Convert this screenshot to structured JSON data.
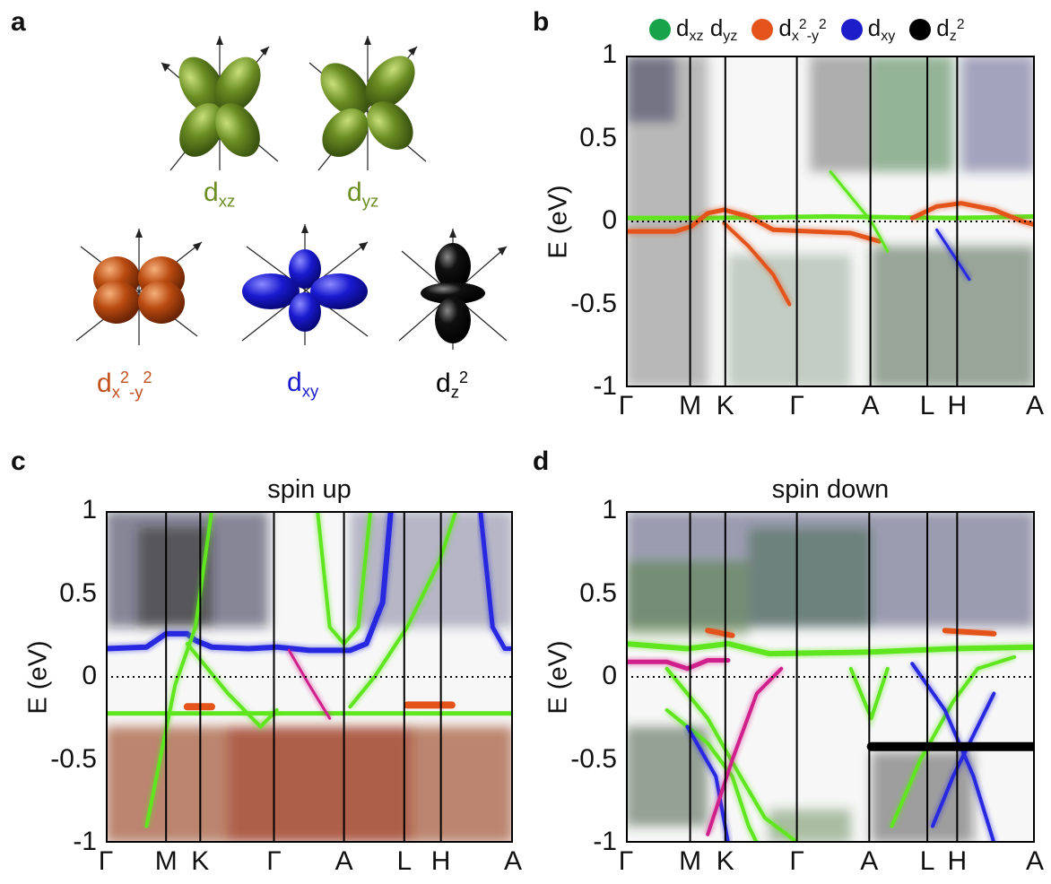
{
  "panel_letters": {
    "a": "a",
    "b": "b",
    "c": "c",
    "d": "d"
  },
  "orbitals": {
    "dxz": {
      "base": "d",
      "sub": "xz",
      "color": "#6b8e23"
    },
    "dyz": {
      "base": "d",
      "sub": "yz",
      "color": "#6b8e23"
    },
    "dx2y2": {
      "base": "d",
      "sub1": "x",
      "sup1": "2",
      "mid": "-y",
      "sup2": "2",
      "color": "#b94a10"
    },
    "dxy": {
      "base": "d",
      "sub": "xy",
      "color": "#1a1ad0"
    },
    "dz2": {
      "base": "d",
      "sub": "z",
      "sup": "2",
      "color": "#000000"
    }
  },
  "legend": [
    {
      "color": "#16a34a",
      "base": "d",
      "sub": "xz",
      "base2": "d",
      "sub2": "yz"
    },
    {
      "color": "#e3531a",
      "base": "d",
      "sub": "x",
      "sup": "2",
      "mid": "-y",
      "sup2": "2"
    },
    {
      "color": "#1d1dc9",
      "base": "d",
      "sub": "xy"
    },
    {
      "color": "#000000",
      "base": "d",
      "sub": "z",
      "sup": "2"
    }
  ],
  "plots": {
    "b": {
      "title": "",
      "ylabel": "E (eV)",
      "yticks": [
        "1",
        "0.5",
        "0",
        "-0.5",
        "-1"
      ],
      "xticks": [
        "Γ",
        "M",
        "K",
        "Γ",
        "A",
        "L",
        "H",
        "A"
      ]
    },
    "c": {
      "title": "spin up",
      "ylabel": "E (eV)",
      "yticks": [
        "1",
        "0.5",
        "0",
        "-0.5",
        "-1"
      ],
      "xticks": [
        "Γ",
        "M",
        "K",
        "Γ",
        "A",
        "L",
        "H",
        "A"
      ]
    },
    "d": {
      "title": "spin down",
      "ylabel": "E (eV)",
      "yticks": [
        "1",
        "0.5",
        "0",
        "-0.5",
        "-1"
      ],
      "xticks": [
        "Γ",
        "M",
        "K",
        "Γ",
        "A",
        "L",
        "H",
        "A"
      ]
    }
  },
  "colors": {
    "green": "#5fe61e",
    "orange": "#e3531a",
    "blue": "#2828e0",
    "magenta": "#d0208c",
    "black": "#000000"
  }
}
